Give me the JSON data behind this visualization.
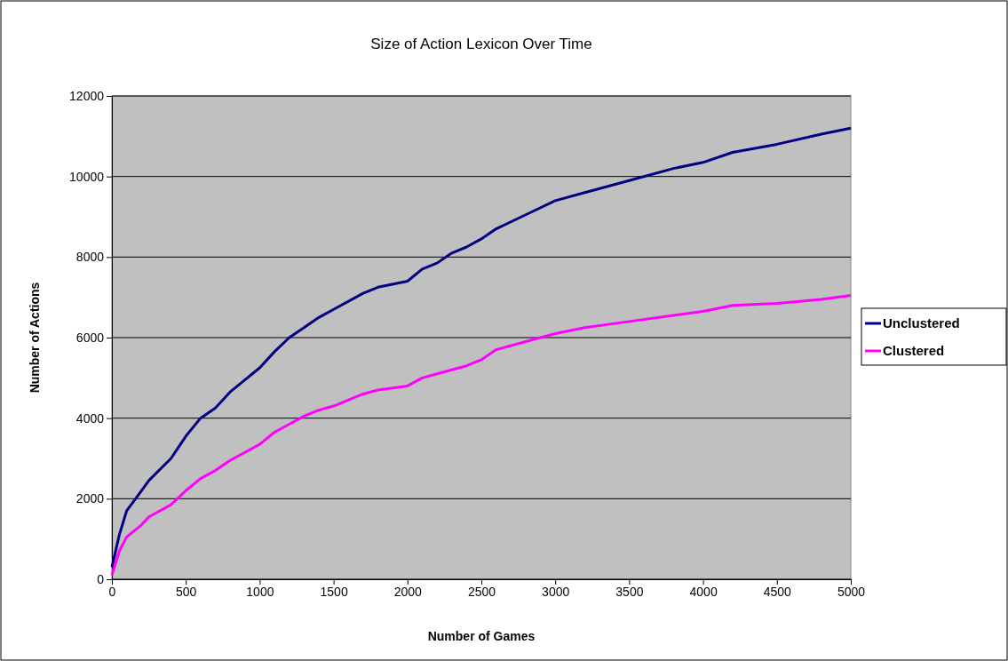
{
  "chart_data": {
    "type": "line",
    "title": "Size of Action Lexicon Over Time",
    "xlabel": "Number of Games",
    "ylabel": "Number of Actions",
    "xlim": [
      0,
      5000
    ],
    "xticks": [
      0,
      500,
      1000,
      1500,
      2000,
      2500,
      3000,
      3500,
      4000,
      4500,
      5000
    ],
    "ylim": [
      0,
      12000
    ],
    "yticks": [
      0,
      2000,
      4000,
      6000,
      8000,
      10000,
      12000
    ],
    "grid": "y",
    "legend": "right",
    "marker": "none",
    "line_style": "solid",
    "x": [
      0,
      50,
      100,
      200,
      250,
      400,
      500,
      600,
      700,
      800,
      900,
      1000,
      1100,
      1200,
      1300,
      1400,
      1500,
      1700,
      1800,
      2000,
      2100,
      2200,
      2300,
      2400,
      2500,
      2600,
      2800,
      3000,
      3200,
      3500,
      3800,
      4000,
      4200,
      4500,
      4800,
      5000
    ],
    "series": [
      {
        "name": "Unclustered",
        "color": "#000080",
        "values": [
          300,
          1100,
          1700,
          2200,
          2450,
          3000,
          3550,
          4000,
          4250,
          4650,
          4950,
          5250,
          5650,
          6000,
          6250,
          6500,
          6700,
          7100,
          7250,
          7400,
          7700,
          7850,
          8100,
          8250,
          8450,
          8700,
          9050,
          9400,
          9600,
          9900,
          10200,
          10350,
          10600,
          10800,
          11050,
          11200
        ]
      },
      {
        "name": "Clustered",
        "color": "#ff00ff",
        "values": [
          100,
          700,
          1050,
          1350,
          1550,
          1850,
          2200,
          2500,
          2700,
          2950,
          3150,
          3350,
          3650,
          3850,
          4050,
          4200,
          4300,
          4600,
          4700,
          4800,
          5000,
          5100,
          5200,
          5300,
          5450,
          5700,
          5900,
          6100,
          6250,
          6400,
          6550,
          6650,
          6800,
          6850,
          6950,
          7050
        ]
      }
    ]
  }
}
